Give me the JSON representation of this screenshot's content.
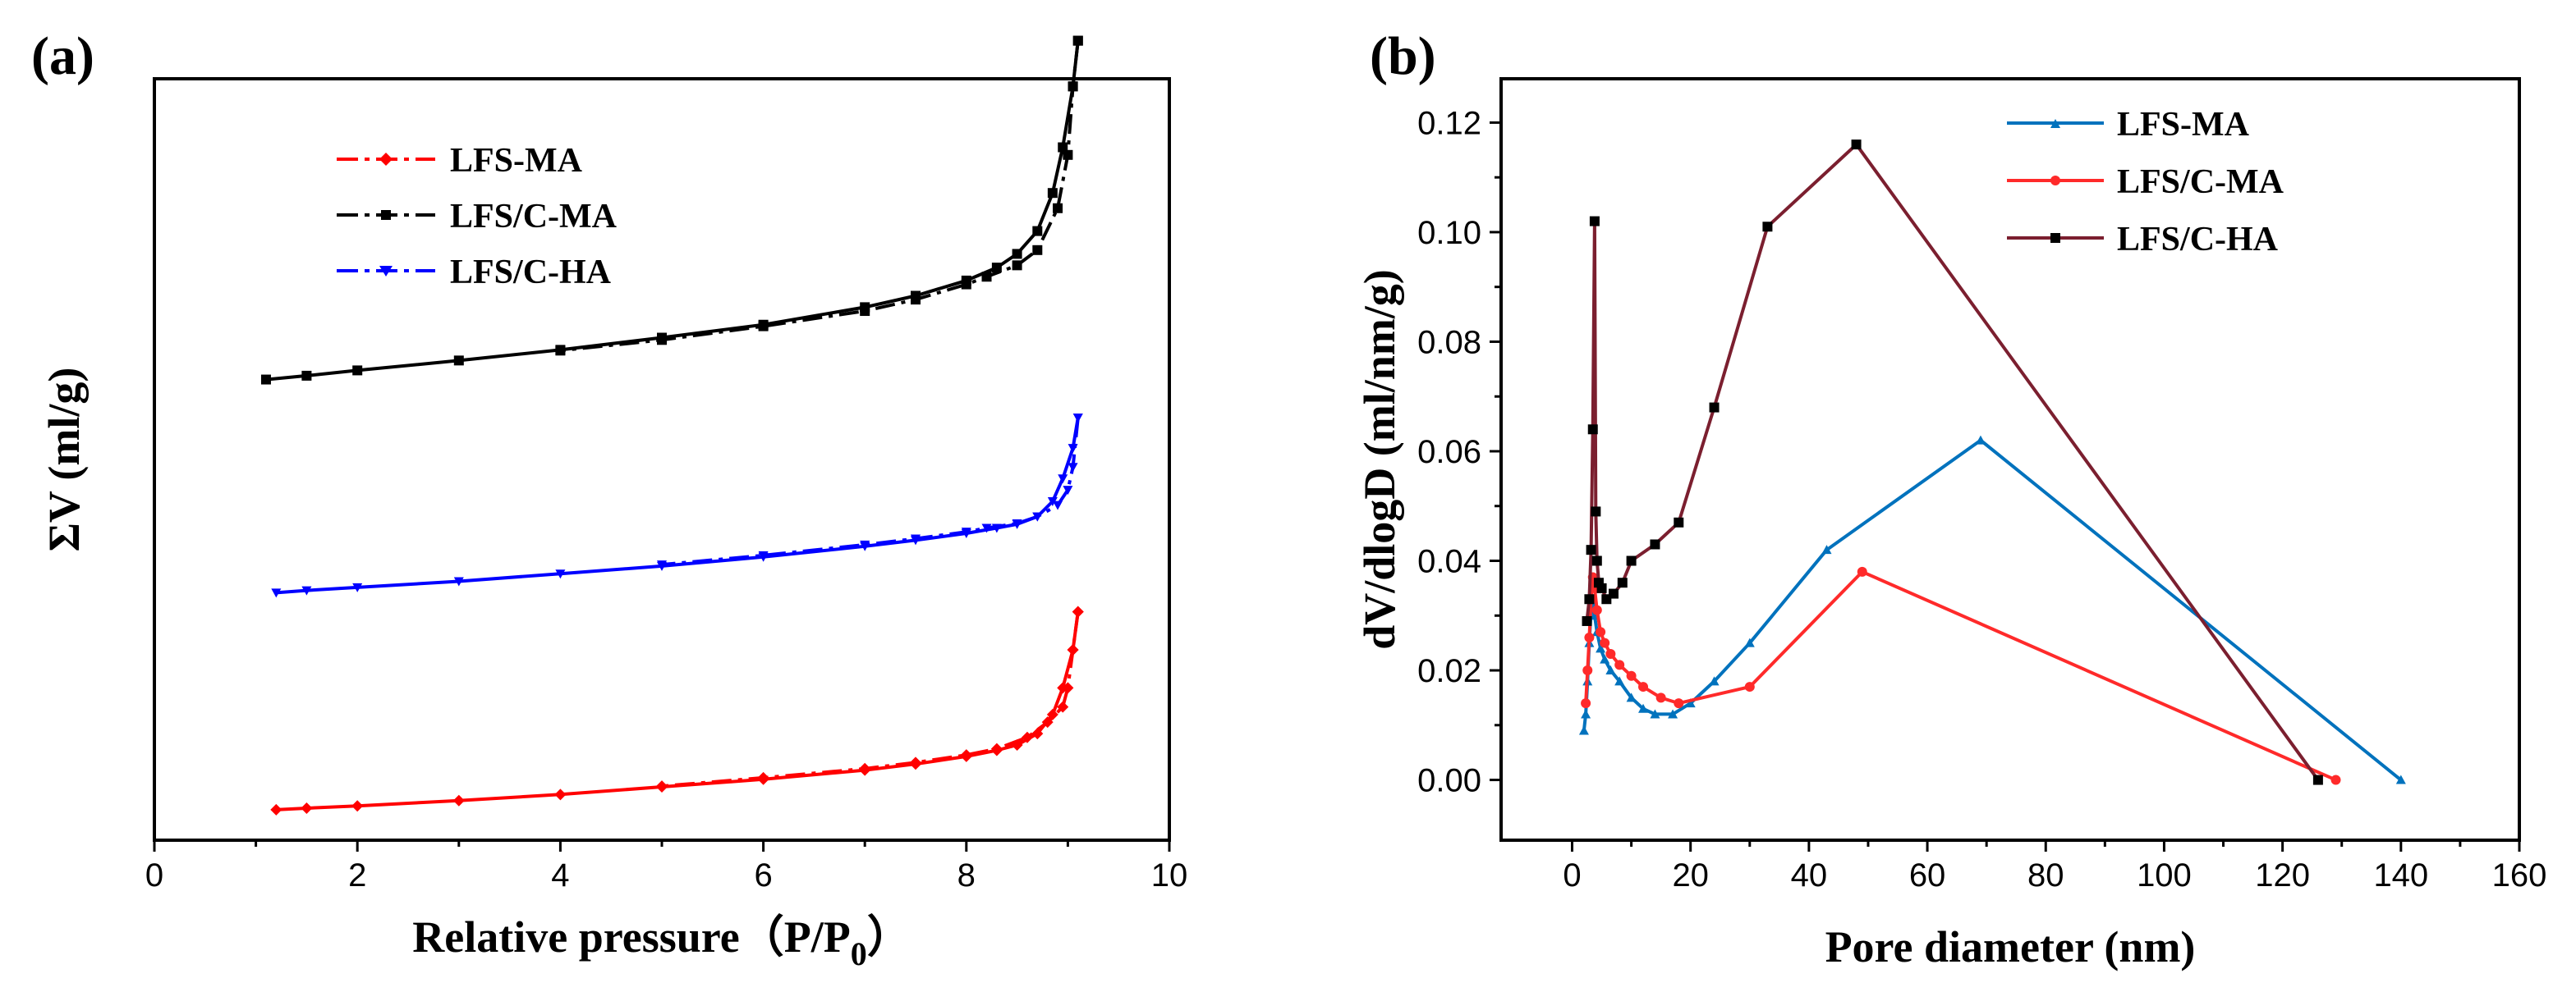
{
  "chart_data": [
    {
      "panel": "(a)",
      "type": "line",
      "title": "",
      "xlabel": "Relative pressure（P/P",
      "xlabel_sub": "0",
      "xlabel_close": "）",
      "ylabel": "ΣV (ml/g)",
      "xlim": [
        0,
        10
      ],
      "ylim": [
        0,
        1
      ],
      "y_ticks_shown": false,
      "grid": false,
      "legend": "top-left",
      "x_ticks": [
        0,
        2,
        4,
        6,
        8,
        10
      ],
      "x_tick_labels": [
        "0",
        "2",
        "4",
        "6",
        "8",
        "10"
      ],
      "series": [
        {
          "name": "LFS-MA",
          "color": "#ff0000",
          "marker": "diamond",
          "adsorption": {
            "x": [
              1.2,
              1.5,
              2,
              3,
              4,
              5,
              6,
              7,
              7.5,
              8,
              8.3,
              8.5,
              8.7,
              8.85,
              8.95,
              9.05,
              9.1
            ],
            "y": [
              0.04,
              0.042,
              0.045,
              0.052,
              0.06,
              0.07,
              0.08,
              0.092,
              0.1,
              0.11,
              0.118,
              0.125,
              0.14,
              0.165,
              0.2,
              0.25,
              0.3
            ]
          },
          "desorption": {
            "x": [
              9.1,
              9.05,
              9.0,
              8.95,
              8.8,
              8.6,
              8.3,
              8.0,
              7.5,
              7.0,
              6.0,
              5.0
            ],
            "y": [
              0.3,
              0.25,
              0.2,
              0.175,
              0.155,
              0.135,
              0.12,
              0.112,
              0.102,
              0.094,
              0.082,
              0.071
            ]
          }
        },
        {
          "name": "LFS/C-MA",
          "color": "#000000",
          "marker": "square",
          "adsorption": {
            "x": [
              1.1,
              1.5,
              2,
              3,
              4,
              5,
              6,
              7,
              7.5,
              8,
              8.3,
              8.5,
              8.7,
              8.85,
              8.95,
              9.05,
              9.1
            ],
            "y": [
              0.605,
              0.61,
              0.617,
              0.63,
              0.644,
              0.66,
              0.677,
              0.7,
              0.715,
              0.735,
              0.752,
              0.77,
              0.8,
              0.85,
              0.91,
              0.99,
              1.05
            ]
          },
          "desorption": {
            "x": [
              9.1,
              9.05,
              9.0,
              8.9,
              8.7,
              8.5,
              8.2,
              8.0,
              7.5,
              7.0,
              6.0,
              5.0,
              4.0
            ],
            "y": [
              1.05,
              0.99,
              0.9,
              0.83,
              0.775,
              0.755,
              0.74,
              0.73,
              0.71,
              0.695,
              0.675,
              0.657,
              0.643
            ]
          }
        },
        {
          "name": "LFS/C-HA",
          "color": "#0000ff",
          "marker": "triangle-down",
          "adsorption": {
            "x": [
              1.2,
              1.5,
              2,
              3,
              4,
              5,
              6,
              7,
              7.5,
              8,
              8.3,
              8.5,
              8.7,
              8.85,
              8.95,
              9.05,
              9.1
            ],
            "y": [
              0.325,
              0.328,
              0.332,
              0.34,
              0.35,
              0.36,
              0.372,
              0.386,
              0.394,
              0.403,
              0.41,
              0.415,
              0.425,
              0.445,
              0.475,
              0.515,
              0.555
            ]
          },
          "desorption": {
            "x": [
              9.1,
              9.05,
              9.0,
              8.9,
              8.7,
              8.5,
              8.2,
              8.0,
              7.5,
              7.0,
              6.0,
              5.0
            ],
            "y": [
              0.555,
              0.49,
              0.46,
              0.44,
              0.425,
              0.416,
              0.41,
              0.405,
              0.396,
              0.388,
              0.374,
              0.362
            ]
          }
        }
      ]
    },
    {
      "panel": "(b)",
      "type": "line",
      "title": "",
      "xlabel": "Pore diameter (nm)",
      "ylabel": "dV/dlogD (ml/nm/g)",
      "xlim": [
        -12,
        160
      ],
      "ylim": [
        -0.011,
        0.128
      ],
      "grid": false,
      "legend": "top-right",
      "x_ticks": [
        0,
        20,
        40,
        60,
        80,
        100,
        120,
        140,
        160
      ],
      "x_tick_labels": [
        "0",
        "20",
        "40",
        "60",
        "80",
        "100",
        "120",
        "140",
        "160"
      ],
      "y_ticks": [
        0.0,
        0.02,
        0.04,
        0.06,
        0.08,
        0.1,
        0.12
      ],
      "y_tick_labels": [
        "0.00",
        "0.02",
        "0.04",
        "0.06",
        "0.08",
        "0.10",
        "0.12"
      ],
      "series": [
        {
          "name": "LFS-MA",
          "color": "#0072bd",
          "marker": "triangle-up",
          "x": [
            2,
            2.3,
            2.6,
            2.9,
            3.2,
            3.5,
            3.8,
            4.2,
            4.8,
            5.5,
            6.5,
            8,
            10,
            12,
            14,
            17,
            20,
            24,
            30,
            43,
            69,
            140
          ],
          "y": [
            0.009,
            0.012,
            0.018,
            0.025,
            0.031,
            0.033,
            0.03,
            0.027,
            0.024,
            0.022,
            0.02,
            0.018,
            0.015,
            0.013,
            0.012,
            0.012,
            0.014,
            0.018,
            0.025,
            0.042,
            0.062,
            0.0
          ]
        },
        {
          "name": "LFS/C-MA",
          "color": "#ff2a2a",
          "marker": "circle",
          "x": [
            2.3,
            2.6,
            2.9,
            3.2,
            3.5,
            3.8,
            4.2,
            4.8,
            5.5,
            6.5,
            8,
            10,
            12,
            15,
            18,
            30,
            49,
            129
          ],
          "y": [
            0.014,
            0.02,
            0.026,
            0.033,
            0.037,
            0.035,
            0.031,
            0.027,
            0.025,
            0.023,
            0.021,
            0.019,
            0.017,
            0.015,
            0.014,
            0.017,
            0.038,
            0.0
          ]
        },
        {
          "name": "LFS/C-HA",
          "color": "#7b1f2f",
          "marker": "square",
          "x": [
            2.5,
            2.9,
            3.2,
            3.5,
            3.8,
            4.0,
            4.2,
            4.5,
            5.0,
            5.8,
            7,
            8.5,
            10,
            14,
            18,
            24,
            33,
            48,
            126
          ],
          "y": [
            0.029,
            0.033,
            0.042,
            0.064,
            0.102,
            0.049,
            0.04,
            0.036,
            0.035,
            0.033,
            0.034,
            0.036,
            0.04,
            0.043,
            0.047,
            0.068,
            0.101,
            0.116,
            0.0
          ]
        }
      ]
    }
  ]
}
